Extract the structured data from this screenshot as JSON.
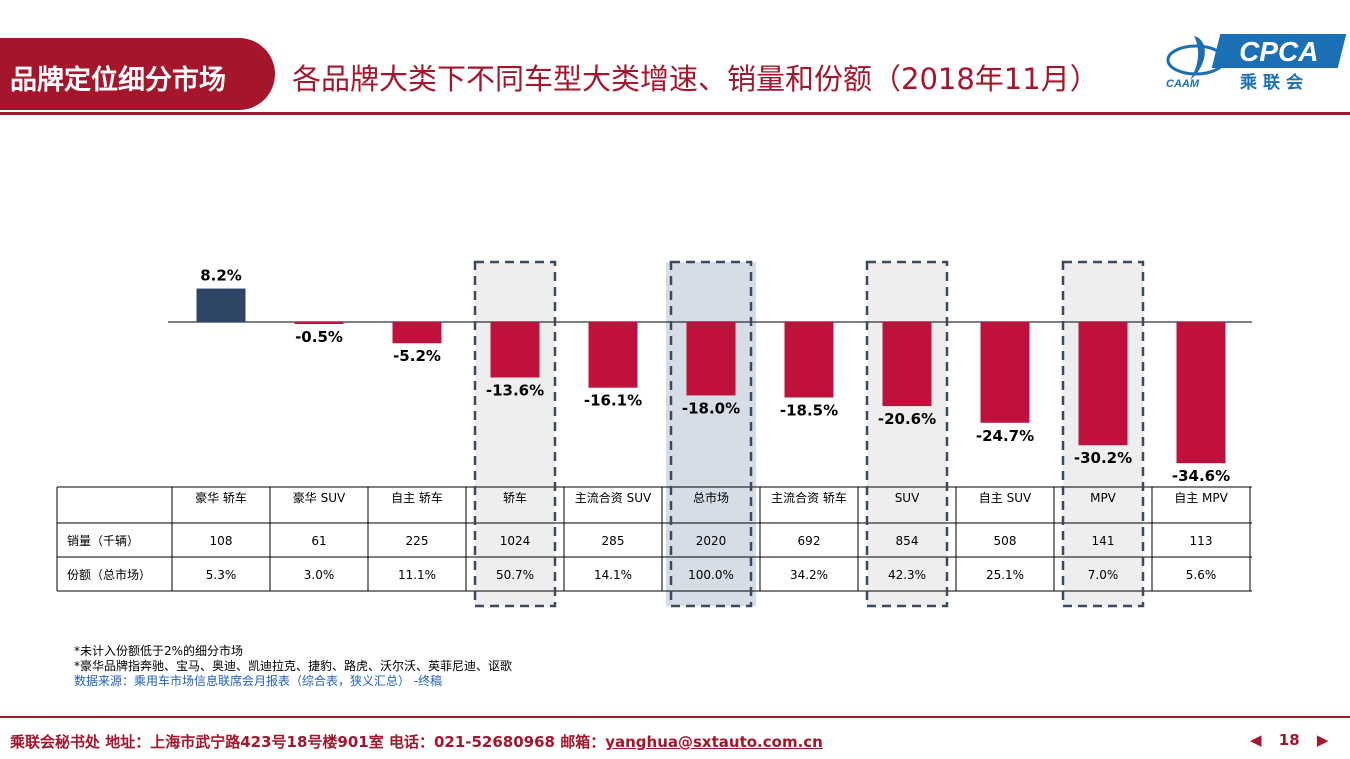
{
  "header": {
    "tag": "品牌定位细分市场",
    "title": "各品牌大类下不同车型大类增速、销量和份额（2018年11月）",
    "logo": {
      "main": "CPCA",
      "cn": "乘联会",
      "sub": "CAAM"
    }
  },
  "colors": {
    "accent": "#a5162c",
    "positive_bar": "#2f4566",
    "negative_bar": "#c0103c",
    "highlight": "#d6dde6",
    "dashed_box": "#eeeeee"
  },
  "chart_data": {
    "type": "bar",
    "categories": [
      "豪华 轿车",
      "豪华 SUV",
      "自主 轿车",
      "轿车",
      "主流合资 SUV",
      "总市场",
      "主流合资 轿车",
      "SUV",
      "自主 SUV",
      "MPV",
      "自主 MPV"
    ],
    "values": [
      8.2,
      -0.5,
      -5.2,
      -13.6,
      -16.1,
      -18.0,
      -18.5,
      -20.6,
      -24.7,
      -30.2,
      -34.6
    ],
    "value_labels": [
      "8.2%",
      "-0.5%",
      "-5.2%",
      "-13.6%",
      "-16.1%",
      "-18.0%",
      "-18.5%",
      "-20.6%",
      "-24.7%",
      "-30.2%",
      "-34.6%"
    ],
    "ylim": [
      -40,
      10
    ],
    "highlighted": [
      "总市场"
    ],
    "boxed": [
      "轿车",
      "总市场",
      "SUV",
      "MPV"
    ],
    "title": "",
    "xlabel": "",
    "ylabel": ""
  },
  "table": {
    "rows": [
      {
        "label": "销量（千辆）",
        "values": [
          "108",
          "61",
          "225",
          "1024",
          "285",
          "2020",
          "692",
          "854",
          "508",
          "141",
          "113"
        ]
      },
      {
        "label": "份额（总市场）",
        "values": [
          "5.3%",
          "3.0%",
          "11.1%",
          "50.7%",
          "14.1%",
          "100.0%",
          "34.2%",
          "42.3%",
          "25.1%",
          "7.0%",
          "5.6%"
        ]
      }
    ]
  },
  "notes": {
    "line1": "*未计入份额低于2%的细分市场",
    "line2": "*豪华品牌指奔驰、宝马、奥迪、凯迪拉克、捷豹、路虎、沃尔沃、英菲尼迪、讴歌",
    "source": "数据来源：乘用车市场信息联席会月报表（综合表，狭义汇总） -终稿"
  },
  "footer": {
    "text": "乘联会秘书处   地址：上海市武宁路423号18号楼901室  电话：021-52680968   邮箱：",
    "email": "yanghua@sxtauto.com.cn",
    "page": "18"
  }
}
